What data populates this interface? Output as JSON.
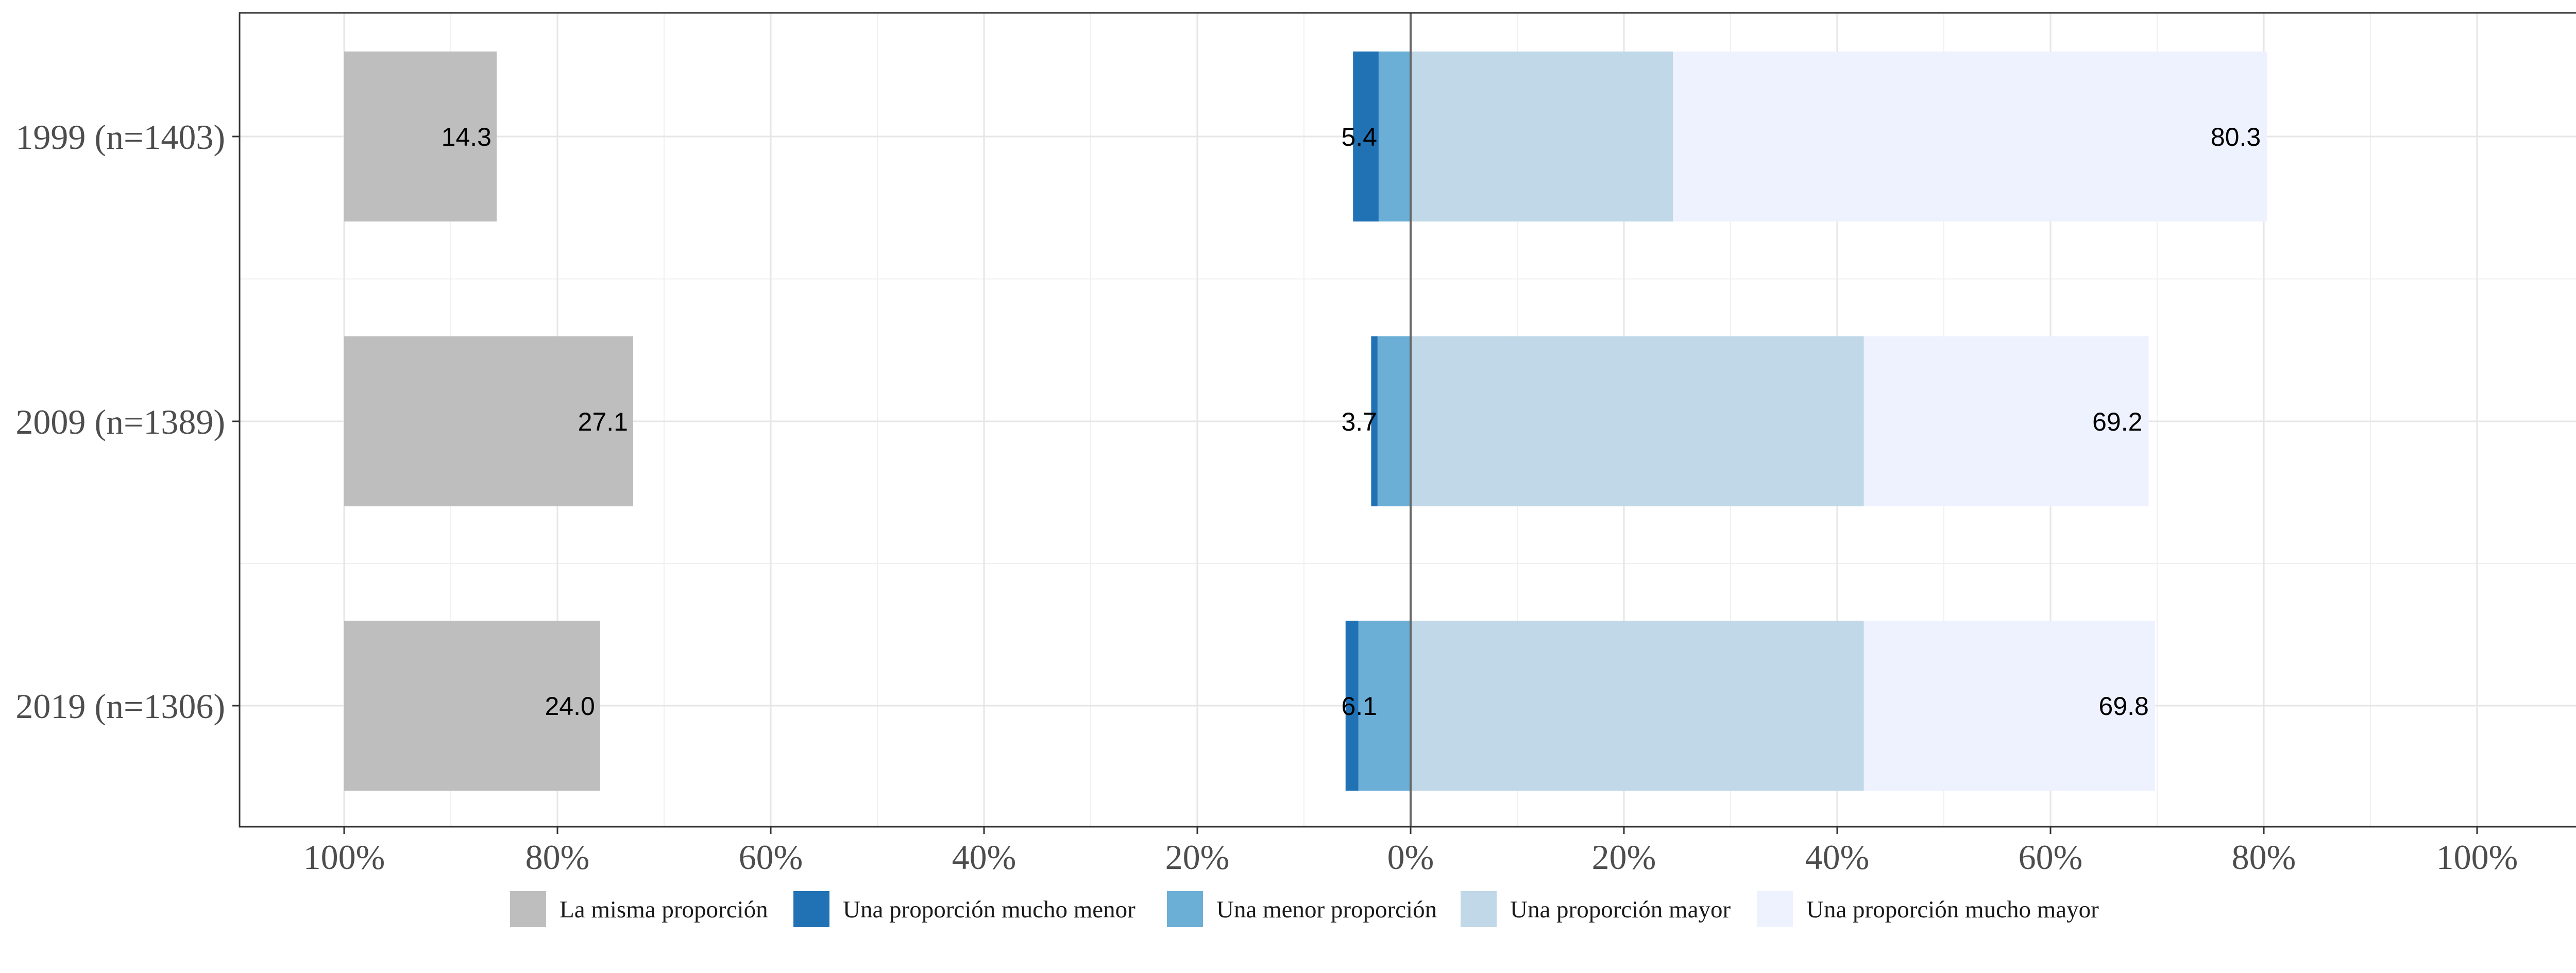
{
  "chart_data": {
    "type": "bar",
    "orientation": "horizontal",
    "stacked": "diverging",
    "categories": [
      "1999 (n=1403)",
      "2009 (n=1389)",
      "2019 (n=1306)"
    ],
    "x_ticks": [
      "100%",
      "80%",
      "60%",
      "40%",
      "20%",
      "0%",
      "20%",
      "40%",
      "60%",
      "80%",
      "100%"
    ],
    "neutral_series": {
      "name": "La misma proporción",
      "color": "#bebebe",
      "values": [
        14.3,
        27.1,
        24.0
      ],
      "labels": [
        "14.3",
        "27.1",
        "24.0"
      ]
    },
    "negative_series": [
      {
        "name": "Una proporción mucho menor",
        "color": "#2171b5",
        "values": [
          2.4,
          0.6,
          1.2
        ]
      },
      {
        "name": "Una menor proporción",
        "color": "#6baed6",
        "values": [
          3.0,
          3.1,
          4.9
        ]
      }
    ],
    "negative_totals": [
      "5.4",
      "3.7",
      "6.1"
    ],
    "positive_series": [
      {
        "name": "Una proporción mayor",
        "color": "#c0d8e7",
        "values": [
          24.6,
          42.5,
          42.5
        ]
      },
      {
        "name": "Una proporción mucho mayor",
        "color": "#eef2ff",
        "values": [
          55.7,
          26.7,
          27.3
        ]
      }
    ],
    "positive_totals": [
      "80.3",
      "69.2",
      "69.8"
    ],
    "legend": {
      "position": "bottom",
      "items": [
        {
          "name": "La misma proporción",
          "color": "#bebebe"
        },
        {
          "name": "Una proporción mucho menor",
          "color": "#2171b5"
        },
        {
          "name": "Una menor proporción",
          "color": "#6baed6"
        },
        {
          "name": "Una proporción mayor",
          "color": "#c0d8e7"
        },
        {
          "name": "Una proporción mucho mayor",
          "color": "#eef2ff"
        }
      ]
    },
    "xlim": [
      -110,
      110
    ],
    "grid": true
  }
}
